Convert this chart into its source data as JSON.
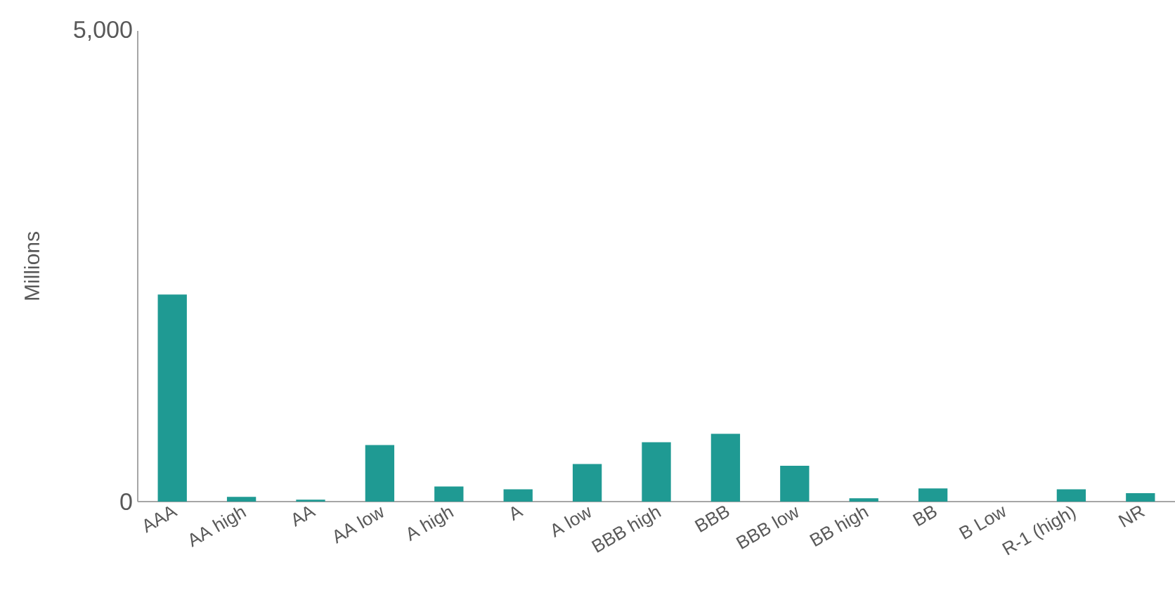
{
  "chart_data": {
    "type": "bar",
    "ylabel": "Millions",
    "categories": [
      "AAA",
      "AA high",
      "AA",
      "AA low",
      "A high",
      "A",
      "A low",
      "BBB high",
      "BBB",
      "BBB low",
      "BB high",
      "BB",
      "B Low",
      "R-1 (high)",
      "NR"
    ],
    "values": [
      2200,
      50,
      20,
      600,
      160,
      130,
      400,
      630,
      720,
      380,
      35,
      140,
      0,
      130,
      90
    ],
    "color": "#1f9a93",
    "ylim": [
      0,
      5000
    ],
    "yticks": [
      0,
      {
        "value": 5000,
        "label": "5,000"
      }
    ],
    "grid": false
  }
}
